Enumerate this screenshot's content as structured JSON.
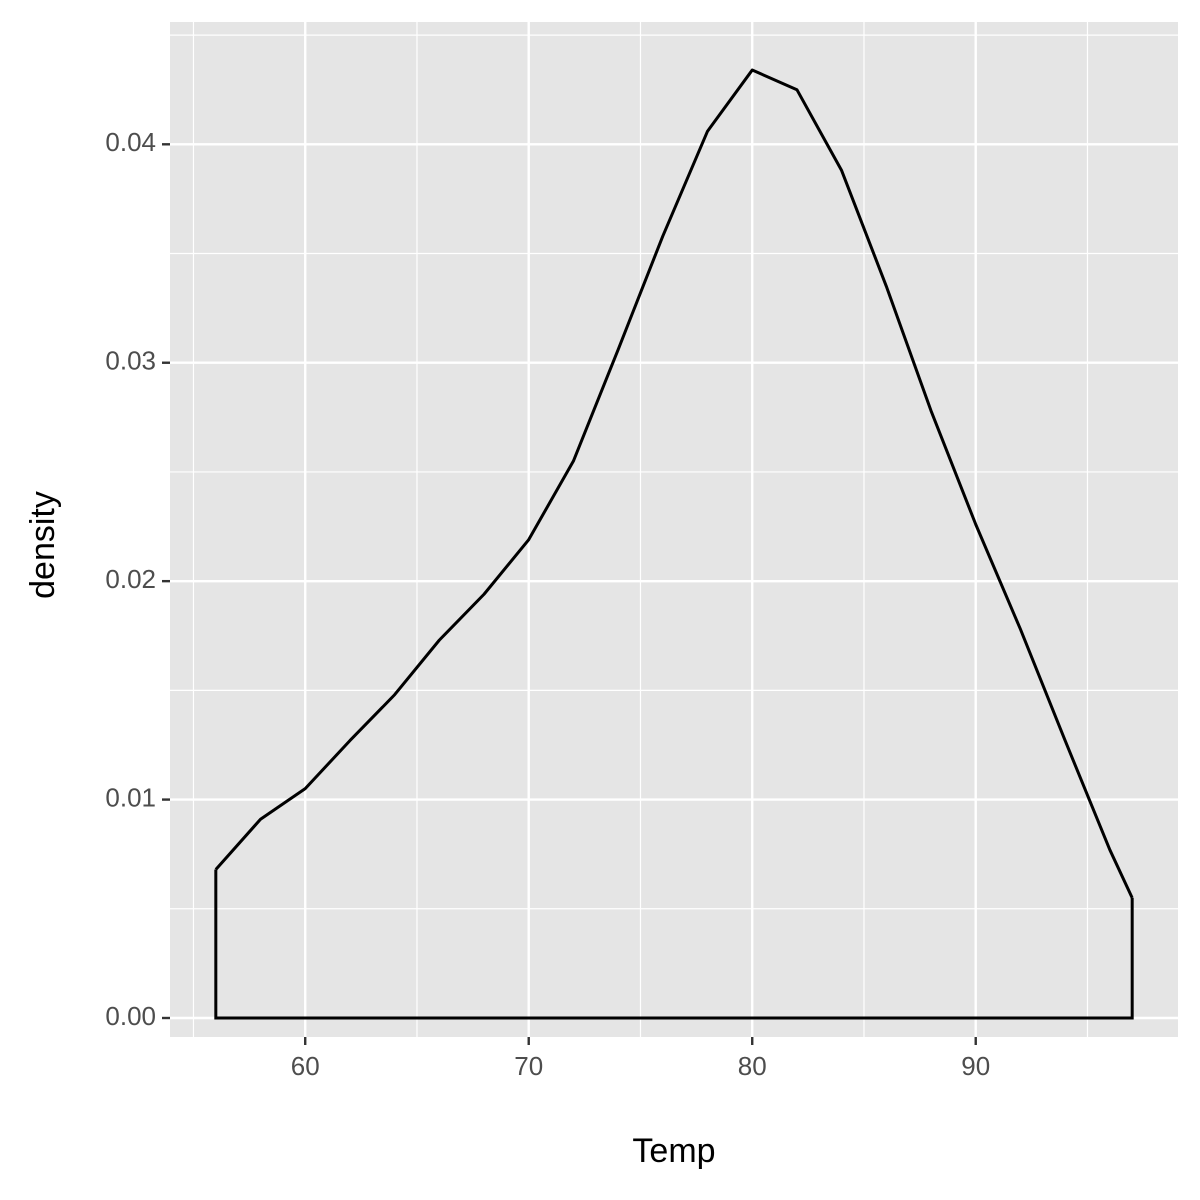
{
  "chart_data": {
    "type": "density",
    "x_label": "Temp",
    "y_label": "density",
    "x": [
      56,
      58,
      60,
      62,
      64,
      66,
      68,
      70,
      72,
      74,
      76,
      78,
      80,
      82,
      84,
      86,
      88,
      90,
      92,
      94,
      96,
      97
    ],
    "values": [
      0.0068,
      0.0091,
      0.0105,
      0.0127,
      0.0148,
      0.0173,
      0.0194,
      0.0219,
      0.0255,
      0.0306,
      0.0358,
      0.0406,
      0.0434,
      0.0425,
      0.0388,
      0.0335,
      0.0278,
      0.0226,
      0.0178,
      0.0127,
      0.0077,
      0.0055
    ],
    "color": "#000000",
    "xlim": [
      53.95,
      99.05
    ],
    "ylim": [
      -0.00087,
      0.0456
    ],
    "xticks": [
      60,
      70,
      80,
      90
    ],
    "yticks": [
      {
        "value": 0,
        "label": "0.00"
      },
      {
        "value": 0.01,
        "label": "0.01"
      },
      {
        "value": 0.02,
        "label": "0.02"
      },
      {
        "value": 0.03,
        "label": "0.03"
      },
      {
        "value": 0.04,
        "label": "0.04"
      }
    ],
    "xminorticks": [
      55,
      65,
      75,
      85,
      95
    ],
    "yminorticks": [
      0.005,
      0.015,
      0.025,
      0.035,
      0.045
    ],
    "grid": true
  }
}
